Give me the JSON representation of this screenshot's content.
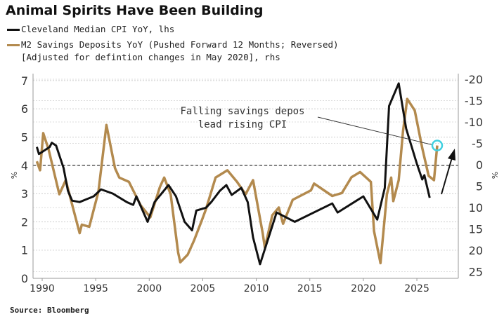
{
  "title": "Animal Spirits Have Been Building",
  "legend": [
    {
      "label": "Cleveland Median CPI YoY, lhs",
      "color": "#111111"
    },
    {
      "label": "M2 Savings Deposits YoY (Pushed Forward 12 Months; Reversed)",
      "label2": "[Adjusted for defintion changes in May 2020], rhs",
      "color": "#b38a4e"
    }
  ],
  "source": "Source: Bloomberg",
  "chart_data": {
    "type": "line",
    "title": "Animal Spirits Have Been Building",
    "xlim": [
      1989.1,
      2029.2
    ],
    "x_ticks": [
      "1990",
      "1995",
      "2000",
      "2005",
      "2010",
      "2015",
      "2020",
      "2025"
    ],
    "left_axis": {
      "label": "%",
      "ylim": [
        0,
        7
      ],
      "ticks": [
        "0",
        "1",
        "2",
        "3",
        "4",
        "5",
        "6",
        "7"
      ]
    },
    "right_axis": {
      "label": "%",
      "reversed": true,
      "ylim": [
        -20,
        25
      ],
      "ticks": [
        "-20",
        "-15",
        "-10",
        "-5",
        "0",
        "5",
        "10",
        "15",
        "20",
        "25"
      ]
    },
    "reference_line": {
      "left_value": 4,
      "right_value": 0,
      "style": "dashed"
    },
    "annotation": {
      "line1": "Falling savings depos",
      "line2": "lead rising CPI",
      "target": [
        2026.9,
        -4.5
      ]
    },
    "series": [
      {
        "name": "Cleveland Median CPI YoY",
        "axis": "left",
        "color": "#111111",
        "x": [
          1989.5,
          1989.7,
          1990.7,
          1990.9,
          1991.3,
          1992.0,
          1992.4,
          1992.8,
          1993.5,
          1994.8,
          1995.5,
          1996.6,
          1997.9,
          1998.5,
          1998.8,
          1999.85,
          2000.5,
          2001.8,
          2002.5,
          2003.3,
          2004.0,
          2004.4,
          2005.3,
          2005.8,
          2006.6,
          2007.2,
          2007.7,
          2008.6,
          2009.2,
          2009.7,
          2010.35,
          2011.9,
          2013.6,
          2017.1,
          2017.6,
          2020.0,
          2021.3,
          2022.0,
          2022.4,
          2023.3,
          2024.0,
          2025.0,
          2025.5,
          2025.7,
          2026.2
        ],
        "y": [
          4.65,
          4.4,
          4.65,
          4.8,
          4.7,
          3.9,
          3.1,
          2.75,
          2.7,
          2.9,
          3.15,
          3.0,
          2.7,
          2.6,
          2.9,
          2.0,
          2.7,
          3.3,
          2.9,
          2.0,
          1.7,
          2.4,
          2.5,
          2.7,
          3.1,
          3.3,
          2.95,
          3.2,
          2.7,
          1.45,
          0.5,
          2.33,
          2.0,
          2.65,
          2.33,
          2.9,
          2.08,
          3.2,
          6.1,
          6.9,
          5.3,
          4.05,
          3.5,
          3.65,
          2.85
        ]
      },
      {
        "name": "M2 Savings Deposits YoY (reversed, pushed fwd 12m)",
        "axis": "right",
        "color": "#b38a4e",
        "x": [
          1989.5,
          1989.8,
          1990.1,
          1990.6,
          1991.6,
          1992.2,
          1993.5,
          1993.7,
          1994.4,
          1995.25,
          1996.0,
          1996.8,
          1997.2,
          1998.1,
          1999.2,
          2000.1,
          2001.0,
          2001.4,
          2002.0,
          2002.7,
          2002.9,
          2003.6,
          2004.2,
          2004.9,
          2005.3,
          2006.2,
          2007.3,
          2008.2,
          2009.0,
          2009.7,
          2010.6,
          2010.8,
          2011.5,
          2012.1,
          2012.5,
          2013.4,
          2015.1,
          2015.4,
          2017.1,
          2018.0,
          2018.9,
          2019.7,
          2020.7,
          2021.0,
          2021.6,
          2022.2,
          2022.6,
          2022.8,
          2023.3,
          2023.7,
          2024.1,
          2024.8,
          2025.5,
          2026.1,
          2026.6,
          2026.8,
          2026.9
        ],
        "y": [
          -0.8,
          1.3,
          -7.4,
          -3.6,
          6.9,
          3.6,
          16,
          14,
          14.5,
          6.3,
          -9.3,
          0.8,
          3,
          4,
          9.5,
          12.3,
          5.2,
          3,
          6.9,
          20.5,
          22.8,
          21,
          17.6,
          13.1,
          10.4,
          3,
          1.3,
          4,
          6.9,
          3.6,
          16,
          19.4,
          11.8,
          10,
          13.8,
          8.2,
          6,
          4.4,
          7.3,
          6.6,
          2.9,
          1.7,
          4,
          15.5,
          23,
          6.9,
          3,
          8.5,
          3.6,
          -7.8,
          -15.4,
          -12.7,
          -3.9,
          2.6,
          3.6,
          -1.9,
          -4.5
        ]
      }
    ]
  }
}
